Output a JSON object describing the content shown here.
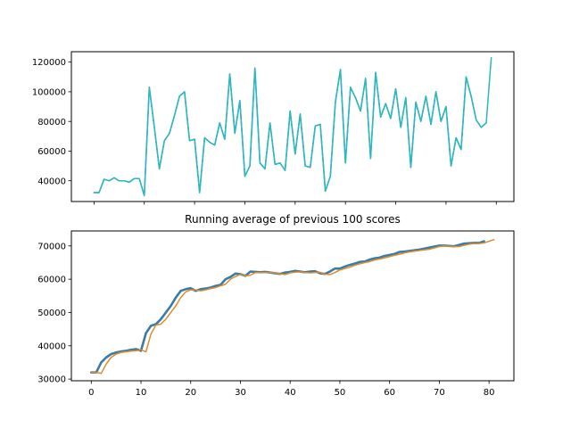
{
  "chart_data": [
    {
      "type": "line",
      "title": "",
      "xlabel": "",
      "ylabel": "",
      "xlim": [
        -4.5,
        83.5
      ],
      "ylim": [
        26000,
        127000
      ],
      "x_ticks": [
        0,
        10,
        20,
        30,
        40,
        50,
        60,
        70,
        80
      ],
      "x_tick_labels_shown": false,
      "y_ticks": [
        40000,
        60000,
        80000,
        100000,
        120000
      ],
      "y_tick_labels": [
        "40000",
        "60000",
        "80000",
        "100000",
        "120000"
      ],
      "grid": false,
      "series": [
        {
          "color": "#3a8fb0",
          "x": [
            0,
            1,
            2,
            3,
            4,
            5,
            6,
            7,
            8,
            9,
            10,
            11,
            12,
            13,
            14,
            15,
            16,
            17,
            18,
            19,
            20,
            21,
            22,
            23,
            24,
            25,
            26,
            27,
            28,
            29,
            30,
            31,
            32,
            33,
            34,
            35,
            36,
            37,
            38,
            39,
            40,
            41,
            42,
            43,
            44,
            45,
            46,
            47,
            48,
            49,
            50,
            51,
            52,
            53,
            54,
            55,
            56,
            57,
            58,
            59,
            60,
            61,
            62,
            63,
            64,
            65,
            66,
            67,
            68,
            69,
            70,
            71,
            72,
            73,
            74,
            75,
            76,
            77,
            78
          ],
          "values": [
            32000,
            32000,
            41000,
            40000,
            42000,
            40000,
            40000,
            39000,
            41500,
            41500,
            30000,
            103000,
            76000,
            48000,
            67000,
            72000,
            84000,
            97000,
            100000,
            67000,
            68000,
            32000,
            69000,
            66000,
            64000,
            79000,
            68000,
            112000,
            72000,
            94000,
            43000,
            50000,
            116000,
            52000,
            48000,
            79000,
            51000,
            52000,
            47000,
            87000,
            58000,
            85000,
            50000,
            49000,
            77000,
            78000,
            33000,
            43000,
            93000,
            115000,
            52000,
            103000,
            96000,
            87000,
            109000,
            55000,
            113000,
            83000,
            92000,
            82000,
            102000,
            76000,
            96000,
            49000,
            93000,
            80000,
            97000,
            78000,
            100000,
            80000,
            90000,
            50000,
            69000,
            61000,
            110000,
            97000,
            81000,
            76000,
            79000
          ]
        },
        {
          "color": "#2ab9bf",
          "x": [
            0,
            1,
            2,
            3,
            4,
            5,
            6,
            7,
            8,
            9,
            10,
            11,
            12,
            13,
            14,
            15,
            16,
            17,
            18,
            19,
            20,
            21,
            22,
            23,
            24,
            25,
            26,
            27,
            28,
            29,
            30,
            31,
            32,
            33,
            34,
            35,
            36,
            37,
            38,
            39,
            40,
            41,
            42,
            43,
            44,
            45,
            46,
            47,
            48,
            49,
            50,
            51,
            52,
            53,
            54,
            55,
            56,
            57,
            58,
            59,
            60,
            61,
            62,
            63,
            64,
            65,
            66,
            67,
            68,
            69,
            70,
            71,
            72,
            73,
            74,
            75,
            76,
            77,
            78,
            79
          ],
          "values": [
            32000,
            32000,
            41000,
            40000,
            42000,
            40000,
            40000,
            39000,
            41500,
            41500,
            30000,
            103000,
            76000,
            48000,
            67000,
            72000,
            84000,
            97000,
            100000,
            67000,
            68000,
            32000,
            69000,
            66000,
            64000,
            79000,
            68000,
            112000,
            72000,
            94000,
            43000,
            50000,
            116000,
            52000,
            48000,
            79000,
            51000,
            52000,
            47000,
            87000,
            58000,
            85000,
            50000,
            49000,
            77000,
            78000,
            33000,
            43000,
            93000,
            115000,
            52000,
            103000,
            96000,
            87000,
            109000,
            55000,
            113000,
            83000,
            92000,
            82000,
            102000,
            76000,
            96000,
            49000,
            93000,
            80000,
            97000,
            78000,
            100000,
            80000,
            90000,
            50000,
            69000,
            61000,
            110000,
            97000,
            81000,
            76000,
            79000,
            123000
          ]
        }
      ]
    },
    {
      "type": "line",
      "title": "Running average of previous 100 scores",
      "xlabel": "",
      "ylabel": "",
      "xlim": [
        -4,
        85
      ],
      "ylim": [
        29500,
        74500
      ],
      "x_ticks": [
        0,
        10,
        20,
        30,
        40,
        50,
        60,
        70,
        80
      ],
      "x_tick_labels": [
        "0",
        "10",
        "20",
        "30",
        "40",
        "50",
        "60",
        "70",
        "80"
      ],
      "y_ticks": [
        30000,
        40000,
        50000,
        60000,
        70000
      ],
      "y_tick_labels": [
        "30000",
        "40000",
        "50000",
        "60000",
        "70000"
      ],
      "grid": false,
      "series": [
        {
          "color": "#3a7ca5",
          "x": [
            0,
            1,
            2,
            3,
            4,
            5,
            6,
            7,
            8,
            9,
            10,
            11,
            12,
            13,
            14,
            15,
            16,
            17,
            18,
            19,
            20,
            21,
            22,
            23,
            24,
            25,
            26,
            27,
            28,
            29,
            30,
            31,
            32,
            33,
            34,
            35,
            36,
            37,
            38,
            39,
            40,
            41,
            42,
            43,
            44,
            45,
            46,
            47,
            48,
            49,
            50,
            51,
            52,
            53,
            54,
            55,
            56,
            57,
            58,
            59,
            60,
            61,
            62,
            63,
            64,
            65,
            66,
            67,
            68,
            69,
            70,
            71,
            72,
            73,
            74,
            75,
            76,
            77,
            78,
            79
          ],
          "values": [
            32000,
            32000,
            35000,
            36500,
            37500,
            38000,
            38300,
            38500,
            38800,
            39000,
            38500,
            43800,
            46000,
            46500,
            48000,
            50000,
            52000,
            54500,
            56500,
            57000,
            57300,
            56500,
            57000,
            57200,
            57500,
            58000,
            58300,
            60000,
            60700,
            61700,
            61500,
            61000,
            62300,
            62200,
            62100,
            62200,
            62000,
            61800,
            61600,
            62000,
            62200,
            62500,
            62300,
            62100,
            62300,
            62400,
            61800,
            61600,
            62300,
            63200,
            63200,
            63800,
            64300,
            64700,
            65200,
            65300,
            65900,
            66300,
            66500,
            67000,
            67300,
            67600,
            68200,
            68300,
            68500,
            68700,
            68900,
            69200,
            69500,
            69800,
            70100,
            70100,
            70000,
            69900,
            70300,
            70700,
            70800,
            70900,
            70900,
            71400
          ]
        },
        {
          "color": "#e08a2e",
          "x": [
            0,
            1,
            2,
            3,
            4,
            5,
            6,
            7,
            8,
            9,
            10,
            11,
            12,
            13,
            14,
            15,
            16,
            17,
            18,
            19,
            20,
            21,
            22,
            23,
            24,
            25,
            26,
            27,
            28,
            29,
            30,
            31,
            32,
            33,
            34,
            35,
            36,
            37,
            38,
            39,
            40,
            41,
            42,
            43,
            44,
            45,
            46,
            47,
            48,
            49,
            50,
            51,
            52,
            53,
            54,
            55,
            56,
            57,
            58,
            59,
            60,
            61,
            62,
            63,
            64,
            65,
            66,
            67,
            68,
            69,
            70,
            71,
            72,
            73,
            74,
            75,
            76,
            77,
            78,
            79,
            80,
            81
          ],
          "values": [
            32000,
            32000,
            31700,
            34500,
            36500,
            37500,
            38000,
            38200,
            38400,
            38500,
            38800,
            38200,
            43500,
            46200,
            46500,
            48000,
            50000,
            52000,
            54500,
            56200,
            56800,
            56800,
            56500,
            56800,
            57200,
            57500,
            58000,
            58500,
            60000,
            60800,
            61500,
            61000,
            61200,
            62000,
            62000,
            62000,
            62000,
            61900,
            61600,
            61400,
            61900,
            62100,
            62200,
            62000,
            61900,
            62000,
            62100,
            61500,
            61400,
            62000,
            62800,
            63200,
            63600,
            64200,
            64600,
            65000,
            65300,
            65800,
            66100,
            66400,
            66800,
            67200,
            67500,
            67900,
            68200,
            68400,
            68600,
            68800,
            69000,
            69400,
            69800,
            70000,
            69900,
            69800,
            69800,
            70200,
            70500,
            70700,
            70700,
            70900,
            71400,
            71900
          ]
        }
      ]
    }
  ]
}
